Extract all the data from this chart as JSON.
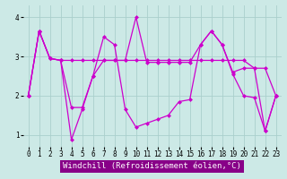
{
  "background_color": "#cce9e6",
  "grid_color": "#aacfcc",
  "line_color": "#cc00cc",
  "x": [
    0,
    1,
    2,
    3,
    4,
    5,
    6,
    7,
    8,
    9,
    10,
    11,
    12,
    13,
    14,
    15,
    16,
    17,
    18,
    19,
    20,
    21,
    22,
    23
  ],
  "line1": [
    2.0,
    3.65,
    2.95,
    2.9,
    2.9,
    2.9,
    2.9,
    2.9,
    2.9,
    2.9,
    2.9,
    2.9,
    2.9,
    2.9,
    2.9,
    2.9,
    2.9,
    2.9,
    2.9,
    2.9,
    2.9,
    2.7,
    2.7,
    2.0
  ],
  "line2": [
    2.0,
    3.65,
    2.95,
    2.9,
    1.7,
    1.7,
    2.5,
    2.9,
    2.9,
    2.9,
    4.0,
    2.85,
    2.85,
    2.85,
    2.85,
    2.85,
    3.3,
    3.65,
    3.3,
    2.6,
    2.7,
    2.7,
    1.1,
    2.0
  ],
  "line3": [
    2.0,
    3.65,
    2.95,
    2.9,
    0.88,
    1.65,
    2.5,
    3.5,
    3.3,
    1.65,
    1.2,
    1.3,
    1.4,
    1.5,
    1.85,
    1.9,
    3.3,
    3.65,
    3.3,
    2.55,
    2.0,
    1.95,
    1.1,
    2.0
  ],
  "ylim": [
    0.7,
    4.3
  ],
  "xlim": [
    -0.5,
    23.5
  ],
  "yticks": [
    1,
    2,
    3,
    4
  ],
  "xticks": [
    0,
    1,
    2,
    3,
    4,
    5,
    6,
    7,
    8,
    9,
    10,
    11,
    12,
    13,
    14,
    15,
    16,
    17,
    18,
    19,
    20,
    21,
    22,
    23
  ],
  "xlabel": "Windchill (Refroidissement éolien,°C)",
  "tick_fontsize": 5.5,
  "xlabel_fontsize": 6.5
}
